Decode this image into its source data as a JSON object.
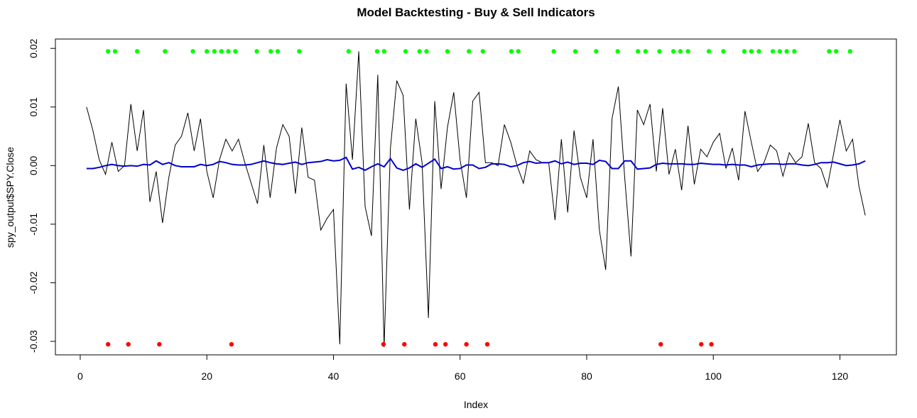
{
  "chart_data": {
    "type": "line",
    "title": "Model Backtesting - Buy & Sell Indicators",
    "xlabel": "Index",
    "ylabel": "spy_output$SPY.Close",
    "xlim": [
      -3.92,
      128.92
    ],
    "ylim": [
      -0.0323,
      0.0216
    ],
    "xticks": [
      0,
      20,
      40,
      60,
      80,
      100,
      120
    ],
    "yticks": [
      -0.03,
      -0.02,
      -0.01,
      {
        "value": 0,
        "label": "0.00"
      },
      0.01,
      0.02
    ],
    "x": [
      1,
      2,
      3,
      4,
      5,
      6,
      7,
      8,
      9,
      10,
      11,
      12,
      13,
      14,
      15,
      16,
      17,
      18,
      19,
      20,
      21,
      22,
      23,
      24,
      25,
      26,
      27,
      28,
      29,
      30,
      31,
      32,
      33,
      34,
      35,
      36,
      37,
      38,
      39,
      40,
      41,
      42,
      43,
      44,
      45,
      46,
      47,
      48,
      49,
      50,
      51,
      52,
      53,
      54,
      55,
      56,
      57,
      58,
      59,
      60,
      61,
      62,
      63,
      64,
      65,
      66,
      67,
      68,
      69,
      70,
      71,
      72,
      73,
      74,
      75,
      76,
      77,
      78,
      79,
      80,
      81,
      82,
      83,
      84,
      85,
      86,
      87,
      88,
      89,
      90,
      91,
      92,
      93,
      94,
      95,
      96,
      97,
      98,
      99,
      100,
      101,
      102,
      103,
      104,
      105,
      106,
      107,
      108,
      109,
      110,
      111,
      112,
      113,
      114,
      115,
      116,
      117,
      118,
      119,
      120,
      121,
      122,
      123,
      124
    ],
    "series": [
      {
        "type": "line",
        "color": "#000000",
        "values": [
          0.01,
          0.006,
          0.001,
          -0.0015,
          0.004,
          -0.001,
          0.0,
          0.0105,
          0.0025,
          0.0095,
          -0.0062,
          -0.001,
          -0.0098,
          -0.002,
          0.0035,
          0.005,
          0.009,
          0.0025,
          0.008,
          -0.001,
          -0.0055,
          0.001,
          0.0045,
          0.0025,
          0.0045,
          0.0005,
          -0.003,
          -0.0065,
          0.0035,
          -0.0055,
          0.003,
          0.007,
          0.005,
          -0.0048,
          0.0065,
          -0.002,
          -0.0025,
          -0.011,
          -0.009,
          -0.0075,
          -0.0305,
          0.014,
          0.001,
          0.0195,
          -0.007,
          -0.012,
          0.0155,
          -0.031,
          0.003,
          0.0145,
          0.012,
          -0.0075,
          0.008,
          0.0005,
          -0.026,
          0.011,
          -0.004,
          0.0065,
          0.0125,
          0.001,
          -0.0055,
          0.011,
          0.0125,
          0.0005,
          0.0005,
          0.0,
          0.007,
          0.004,
          0.0,
          -0.003,
          0.0025,
          0.001,
          0.0005,
          0.0005,
          -0.0093,
          0.0045,
          -0.008,
          0.006,
          -0.002,
          -0.0055,
          0.0045,
          -0.011,
          -0.0178,
          0.008,
          0.0135,
          -0.002,
          -0.0155,
          0.0095,
          0.007,
          0.0105,
          -0.001,
          0.0098,
          -0.0015,
          0.0028,
          -0.0042,
          0.0068,
          -0.0032,
          0.0028,
          0.0015,
          0.004,
          0.0055,
          -0.0005,
          0.003,
          -0.0025,
          0.0093,
          0.004,
          -0.001,
          0.0005,
          0.0035,
          0.0025,
          -0.0018,
          0.0022,
          0.0005,
          0.0015,
          0.0072,
          0.0005,
          -0.0005,
          -0.0037,
          0.002,
          0.0078,
          0.0025,
          0.0045,
          -0.0035,
          -0.0085
        ]
      },
      {
        "type": "line",
        "color": "#0000cd",
        "values": [
          -0.0005,
          -0.0005,
          -0.0003,
          0,
          0.0002,
          0,
          -0.0001,
          0,
          -0.0001,
          0.0002,
          0.0001,
          0.0008,
          0.0002,
          0.0005,
          0,
          -0.0002,
          -0.0002,
          -0.0002,
          0.0002,
          0,
          0.0002,
          0.0007,
          0.0005,
          0.0002,
          0.0001,
          0.0001,
          0.0002,
          0.0005,
          0.0008,
          0.0005,
          0.0003,
          0.0002,
          0.0004,
          0.0006,
          0.0002,
          0.0005,
          0.0006,
          0.0007,
          0.001,
          0.0008,
          0.0009,
          0.0014,
          -0.0006,
          -0.0003,
          -0.0008,
          -0.0002,
          0.0003,
          -0.0002,
          0.0012,
          -0.0004,
          -0.0008,
          -0.0004,
          0.0003,
          -0.0003,
          0.0004,
          0.0011,
          -0.0005,
          -0.0002,
          -0.0006,
          -0.0005,
          0.0001,
          0.0001,
          -0.0005,
          -0.0003,
          0.0003,
          0.0003,
          0.0002,
          -0.0002,
          0,
          0.0005,
          0.0007,
          0.0004,
          0.0005,
          0.0005,
          0.0008,
          0.0003,
          0.0006,
          0.0002,
          0.0004,
          0.0004,
          0.0002,
          0.0009,
          0.0007,
          -0.0005,
          -0.0005,
          0.0008,
          0.0008,
          -0.0006,
          -0.0005,
          -0.0004,
          0.0002,
          0.0004,
          0.0003,
          0.0003,
          0.0003,
          0.0002,
          0.0002,
          0.0004,
          0.0003,
          0.0002,
          0.0002,
          0.0001,
          0.0002,
          0.0001,
          0.0001,
          -0.0002,
          0.0001,
          0.0002,
          0.0003,
          0.0003,
          0.0002,
          0.0003,
          0.0003,
          0.0001,
          0,
          0.0002,
          0.0005,
          0.0005,
          0.0006,
          0.0003,
          0,
          0.0001,
          0.0003,
          0.0008
        ]
      },
      {
        "type": "points",
        "color": "#00ff00",
        "x": [
          4.4,
          5.5,
          9,
          13.4,
          17.8,
          20,
          21.2,
          22.3,
          23.4,
          24.5,
          27.9,
          30.1,
          31.2,
          34.6,
          42.4,
          46.9,
          48,
          51.4,
          53.6,
          54.7,
          58,
          61.4,
          63.6,
          68.1,
          69.2,
          74.8,
          78.2,
          81.5,
          84.9,
          88.1,
          89.3,
          91.5,
          93.7,
          94.8,
          96,
          99.3,
          101.6,
          104.9,
          106,
          107.2,
          109.4,
          110.5,
          111.6,
          112.8,
          118.3,
          119.4,
          121.6
        ],
        "values": [
          0.0195,
          0.0195,
          0.0195,
          0.0195,
          0.0195,
          0.0195,
          0.0195,
          0.0195,
          0.0195,
          0.0195,
          0.0195,
          0.0195,
          0.0195,
          0.0195,
          0.0195,
          0.0195,
          0.0195,
          0.0195,
          0.0195,
          0.0195,
          0.0195,
          0.0195,
          0.0195,
          0.0195,
          0.0195,
          0.0195,
          0.0195,
          0.0195,
          0.0195,
          0.0195,
          0.0195,
          0.0195,
          0.0195,
          0.0195,
          0.0195,
          0.0195,
          0.0195,
          0.0195,
          0.0195,
          0.0195,
          0.0195,
          0.0195,
          0.0195,
          0.0195,
          0.0195,
          0.0195,
          0.0195
        ]
      },
      {
        "type": "points",
        "color": "#ff0000",
        "x": [
          4.4,
          7.6,
          12.5,
          23.9,
          47.9,
          51.2,
          56.1,
          57.7,
          61,
          64.3,
          91.7,
          98.1,
          99.7
        ],
        "values": [
          -0.0305,
          -0.0305,
          -0.0305,
          -0.0305,
          -0.0305,
          -0.0305,
          -0.0305,
          -0.0305,
          -0.0305,
          -0.0305,
          -0.0305,
          -0.0305,
          -0.0305
        ]
      }
    ]
  }
}
